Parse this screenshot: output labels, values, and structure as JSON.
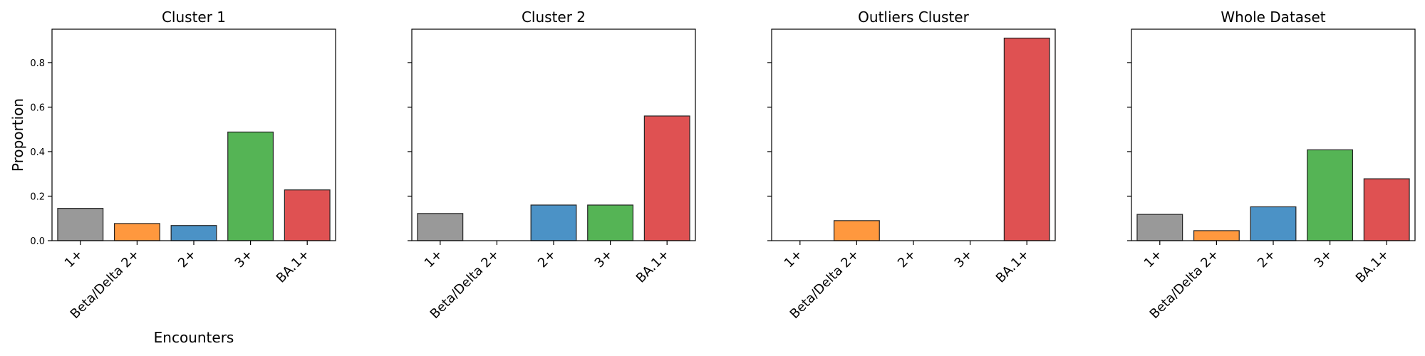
{
  "chart_data": [
    {
      "type": "bar",
      "title": "Cluster 1",
      "categories": [
        "1+",
        "Beta/Delta 2+",
        "2+",
        "3+",
        "BA.1+"
      ],
      "values": [
        0.145,
        0.077,
        0.068,
        0.488,
        0.228
      ],
      "colors": [
        "#999999",
        "#ff983e",
        "#4b92c6",
        "#55b455",
        "#df5152"
      ],
      "xlabel": "Encounters",
      "ylabel": "Proportion",
      "ylim": [
        0,
        0.95
      ],
      "yticks": [
        "0.0",
        "0.2",
        "0.4",
        "0.6",
        "0.8"
      ],
      "grid": false
    },
    {
      "type": "bar",
      "title": "Cluster 2",
      "categories": [
        "1+",
        "Beta/Delta 2+",
        "2+",
        "3+",
        "BA.1+"
      ],
      "values": [
        0.122,
        0.0,
        0.16,
        0.16,
        0.56
      ],
      "colors": [
        "#999999",
        "#ff983e",
        "#4b92c6",
        "#55b455",
        "#df5152"
      ],
      "xlabel": "",
      "ylabel": "",
      "ylim": [
        0,
        0.95
      ],
      "yticks": [],
      "grid": false
    },
    {
      "type": "bar",
      "title": "Outliers Cluster",
      "categories": [
        "1+",
        "Beta/Delta 2+",
        "2+",
        "3+",
        "BA.1+"
      ],
      "values": [
        0.0,
        0.09,
        0.0,
        0.0,
        0.91
      ],
      "colors": [
        "#999999",
        "#ff983e",
        "#4b92c6",
        "#55b455",
        "#df5152"
      ],
      "xlabel": "",
      "ylabel": "",
      "ylim": [
        0,
        0.95
      ],
      "yticks": [],
      "grid": false
    },
    {
      "type": "bar",
      "title": "Whole Dataset",
      "categories": [
        "1+",
        "Beta/Delta 2+",
        "2+",
        "3+",
        "BA.1+"
      ],
      "values": [
        0.118,
        0.045,
        0.152,
        0.408,
        0.278
      ],
      "colors": [
        "#999999",
        "#ff983e",
        "#4b92c6",
        "#55b455",
        "#df5152"
      ],
      "xlabel": "",
      "ylabel": "",
      "ylim": [
        0,
        0.95
      ],
      "yticks": [],
      "grid": false
    }
  ]
}
